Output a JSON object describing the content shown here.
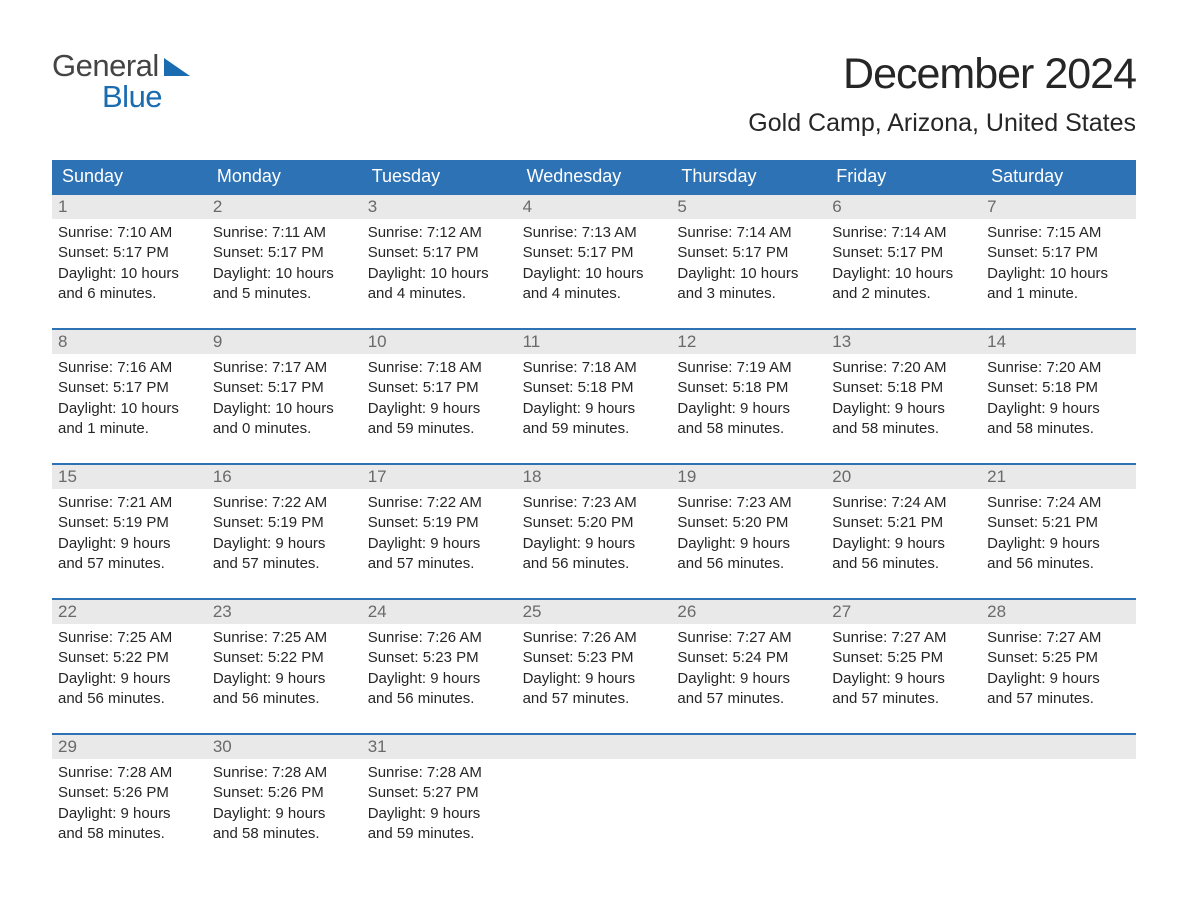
{
  "logo": {
    "top": "General",
    "bottom": "Blue",
    "accent_color": "#1a6cb0",
    "text_color": "#444444"
  },
  "title": "December 2024",
  "location": "Gold Camp, Arizona, United States",
  "calendar": {
    "header_bg": "#2d72b5",
    "header_text_color": "#ffffff",
    "daynum_bg": "#e9e9e9",
    "daynum_color": "#6a6a6a",
    "body_text_color": "#262626",
    "week_border_color": "#2d72b5",
    "page_bg": "#ffffff",
    "header_fontsize": 18,
    "body_fontsize": 15,
    "columns": [
      "Sunday",
      "Monday",
      "Tuesday",
      "Wednesday",
      "Thursday",
      "Friday",
      "Saturday"
    ],
    "weeks": [
      [
        {
          "day": "1",
          "sunrise": "Sunrise: 7:10 AM",
          "sunset": "Sunset: 5:17 PM",
          "dl1": "Daylight: 10 hours",
          "dl2": "and 6 minutes."
        },
        {
          "day": "2",
          "sunrise": "Sunrise: 7:11 AM",
          "sunset": "Sunset: 5:17 PM",
          "dl1": "Daylight: 10 hours",
          "dl2": "and 5 minutes."
        },
        {
          "day": "3",
          "sunrise": "Sunrise: 7:12 AM",
          "sunset": "Sunset: 5:17 PM",
          "dl1": "Daylight: 10 hours",
          "dl2": "and 4 minutes."
        },
        {
          "day": "4",
          "sunrise": "Sunrise: 7:13 AM",
          "sunset": "Sunset: 5:17 PM",
          "dl1": "Daylight: 10 hours",
          "dl2": "and 4 minutes."
        },
        {
          "day": "5",
          "sunrise": "Sunrise: 7:14 AM",
          "sunset": "Sunset: 5:17 PM",
          "dl1": "Daylight: 10 hours",
          "dl2": "and 3 minutes."
        },
        {
          "day": "6",
          "sunrise": "Sunrise: 7:14 AM",
          "sunset": "Sunset: 5:17 PM",
          "dl1": "Daylight: 10 hours",
          "dl2": "and 2 minutes."
        },
        {
          "day": "7",
          "sunrise": "Sunrise: 7:15 AM",
          "sunset": "Sunset: 5:17 PM",
          "dl1": "Daylight: 10 hours",
          "dl2": "and 1 minute."
        }
      ],
      [
        {
          "day": "8",
          "sunrise": "Sunrise: 7:16 AM",
          "sunset": "Sunset: 5:17 PM",
          "dl1": "Daylight: 10 hours",
          "dl2": "and 1 minute."
        },
        {
          "day": "9",
          "sunrise": "Sunrise: 7:17 AM",
          "sunset": "Sunset: 5:17 PM",
          "dl1": "Daylight: 10 hours",
          "dl2": "and 0 minutes."
        },
        {
          "day": "10",
          "sunrise": "Sunrise: 7:18 AM",
          "sunset": "Sunset: 5:17 PM",
          "dl1": "Daylight: 9 hours",
          "dl2": "and 59 minutes."
        },
        {
          "day": "11",
          "sunrise": "Sunrise: 7:18 AM",
          "sunset": "Sunset: 5:18 PM",
          "dl1": "Daylight: 9 hours",
          "dl2": "and 59 minutes."
        },
        {
          "day": "12",
          "sunrise": "Sunrise: 7:19 AM",
          "sunset": "Sunset: 5:18 PM",
          "dl1": "Daylight: 9 hours",
          "dl2": "and 58 minutes."
        },
        {
          "day": "13",
          "sunrise": "Sunrise: 7:20 AM",
          "sunset": "Sunset: 5:18 PM",
          "dl1": "Daylight: 9 hours",
          "dl2": "and 58 minutes."
        },
        {
          "day": "14",
          "sunrise": "Sunrise: 7:20 AM",
          "sunset": "Sunset: 5:18 PM",
          "dl1": "Daylight: 9 hours",
          "dl2": "and 58 minutes."
        }
      ],
      [
        {
          "day": "15",
          "sunrise": "Sunrise: 7:21 AM",
          "sunset": "Sunset: 5:19 PM",
          "dl1": "Daylight: 9 hours",
          "dl2": "and 57 minutes."
        },
        {
          "day": "16",
          "sunrise": "Sunrise: 7:22 AM",
          "sunset": "Sunset: 5:19 PM",
          "dl1": "Daylight: 9 hours",
          "dl2": "and 57 minutes."
        },
        {
          "day": "17",
          "sunrise": "Sunrise: 7:22 AM",
          "sunset": "Sunset: 5:19 PM",
          "dl1": "Daylight: 9 hours",
          "dl2": "and 57 minutes."
        },
        {
          "day": "18",
          "sunrise": "Sunrise: 7:23 AM",
          "sunset": "Sunset: 5:20 PM",
          "dl1": "Daylight: 9 hours",
          "dl2": "and 56 minutes."
        },
        {
          "day": "19",
          "sunrise": "Sunrise: 7:23 AM",
          "sunset": "Sunset: 5:20 PM",
          "dl1": "Daylight: 9 hours",
          "dl2": "and 56 minutes."
        },
        {
          "day": "20",
          "sunrise": "Sunrise: 7:24 AM",
          "sunset": "Sunset: 5:21 PM",
          "dl1": "Daylight: 9 hours",
          "dl2": "and 56 minutes."
        },
        {
          "day": "21",
          "sunrise": "Sunrise: 7:24 AM",
          "sunset": "Sunset: 5:21 PM",
          "dl1": "Daylight: 9 hours",
          "dl2": "and 56 minutes."
        }
      ],
      [
        {
          "day": "22",
          "sunrise": "Sunrise: 7:25 AM",
          "sunset": "Sunset: 5:22 PM",
          "dl1": "Daylight: 9 hours",
          "dl2": "and 56 minutes."
        },
        {
          "day": "23",
          "sunrise": "Sunrise: 7:25 AM",
          "sunset": "Sunset: 5:22 PM",
          "dl1": "Daylight: 9 hours",
          "dl2": "and 56 minutes."
        },
        {
          "day": "24",
          "sunrise": "Sunrise: 7:26 AM",
          "sunset": "Sunset: 5:23 PM",
          "dl1": "Daylight: 9 hours",
          "dl2": "and 56 minutes."
        },
        {
          "day": "25",
          "sunrise": "Sunrise: 7:26 AM",
          "sunset": "Sunset: 5:23 PM",
          "dl1": "Daylight: 9 hours",
          "dl2": "and 57 minutes."
        },
        {
          "day": "26",
          "sunrise": "Sunrise: 7:27 AM",
          "sunset": "Sunset: 5:24 PM",
          "dl1": "Daylight: 9 hours",
          "dl2": "and 57 minutes."
        },
        {
          "day": "27",
          "sunrise": "Sunrise: 7:27 AM",
          "sunset": "Sunset: 5:25 PM",
          "dl1": "Daylight: 9 hours",
          "dl2": "and 57 minutes."
        },
        {
          "day": "28",
          "sunrise": "Sunrise: 7:27 AM",
          "sunset": "Sunset: 5:25 PM",
          "dl1": "Daylight: 9 hours",
          "dl2": "and 57 minutes."
        }
      ],
      [
        {
          "day": "29",
          "sunrise": "Sunrise: 7:28 AM",
          "sunset": "Sunset: 5:26 PM",
          "dl1": "Daylight: 9 hours",
          "dl2": "and 58 minutes."
        },
        {
          "day": "30",
          "sunrise": "Sunrise: 7:28 AM",
          "sunset": "Sunset: 5:26 PM",
          "dl1": "Daylight: 9 hours",
          "dl2": "and 58 minutes."
        },
        {
          "day": "31",
          "sunrise": "Sunrise: 7:28 AM",
          "sunset": "Sunset: 5:27 PM",
          "dl1": "Daylight: 9 hours",
          "dl2": "and 59 minutes."
        },
        null,
        null,
        null,
        null
      ]
    ]
  }
}
